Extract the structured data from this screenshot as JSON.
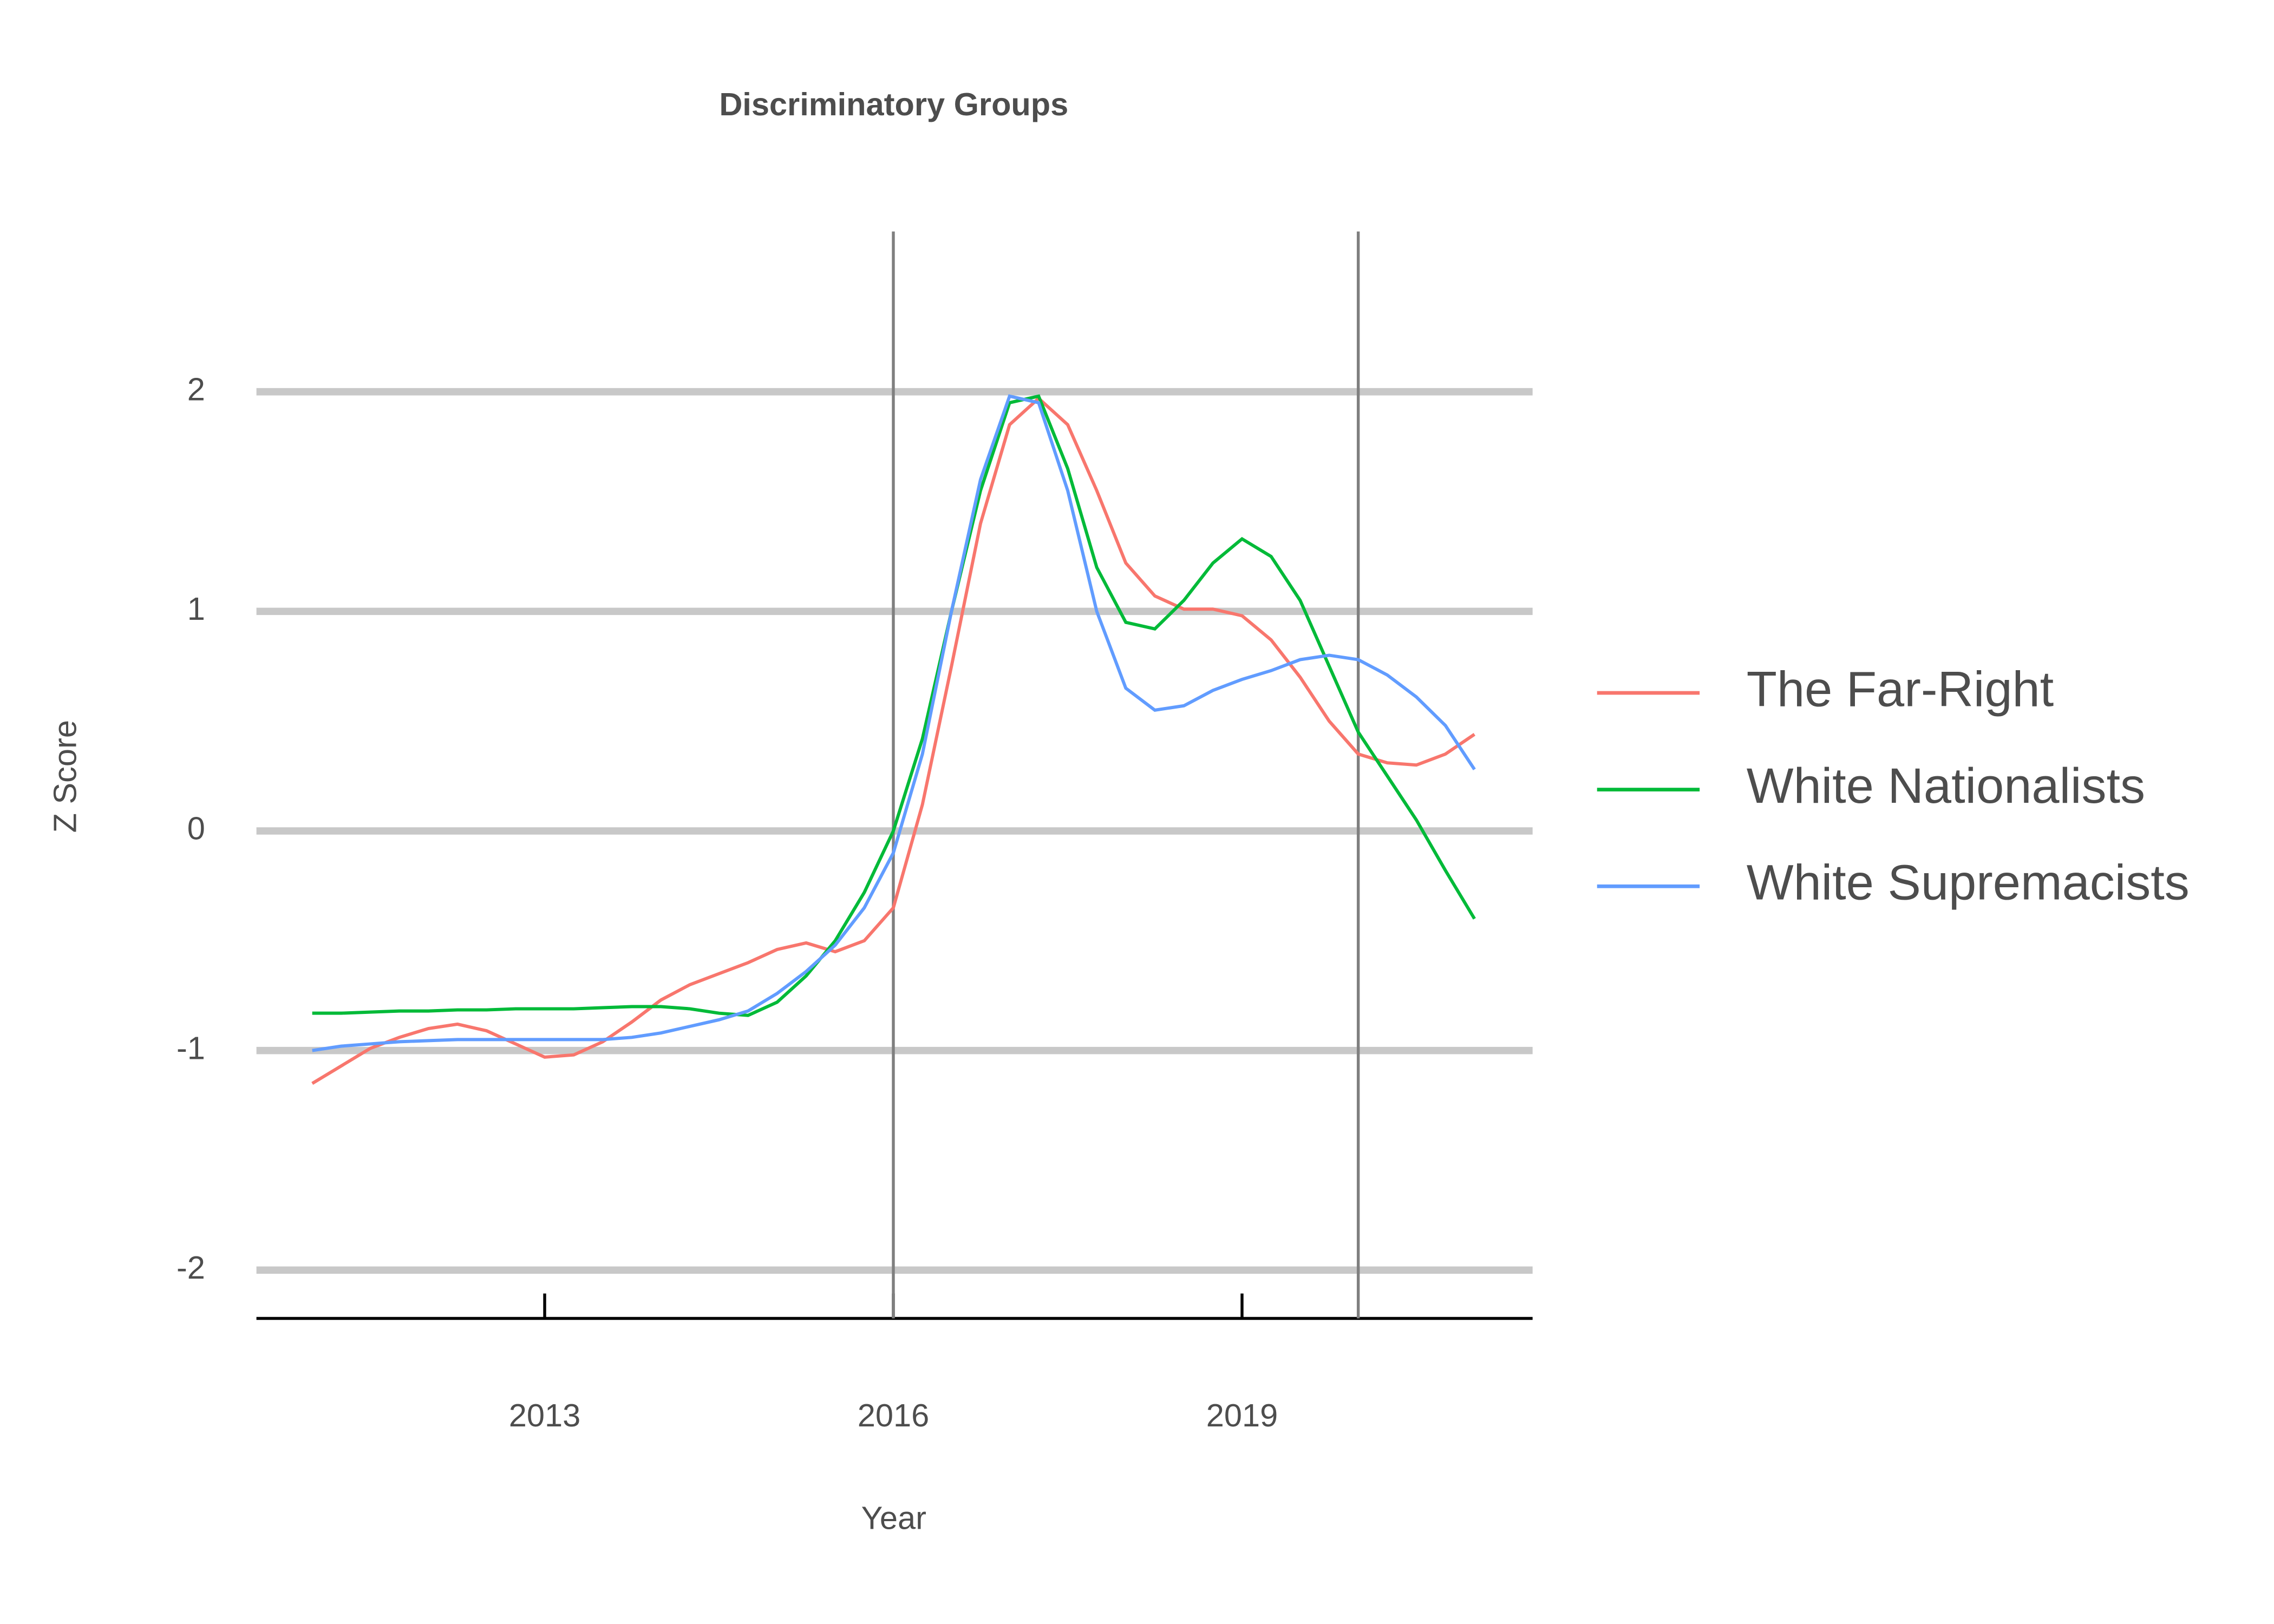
{
  "chart_data": {
    "type": "line",
    "title": "Discriminatory Groups",
    "x_label": "Year",
    "y_label": "Z Score",
    "x": [
      2011,
      2011.25,
      2011.5,
      2011.75,
      2012,
      2012.25,
      2012.5,
      2012.75,
      2013,
      2013.25,
      2013.5,
      2013.75,
      2014,
      2014.25,
      2014.5,
      2014.75,
      2015,
      2015.25,
      2015.5,
      2015.75,
      2016,
      2016.25,
      2016.5,
      2016.75,
      2017,
      2017.25,
      2017.5,
      2017.75,
      2018,
      2018.25,
      2018.5,
      2018.75,
      2019,
      2019.25,
      2019.5,
      2019.75,
      2020,
      2020.25,
      2020.5,
      2020.75,
      2021
    ],
    "series": [
      {
        "name": "The Far-Right",
        "color": "#f8766d",
        "values": [
          -1.15,
          -1.07,
          -0.99,
          -0.94,
          -0.9,
          -0.88,
          -0.91,
          -0.97,
          -1.03,
          -1.02,
          -0.96,
          -0.87,
          -0.77,
          -0.7,
          -0.65,
          -0.6,
          -0.54,
          -0.51,
          -0.55,
          -0.5,
          -0.35,
          0.12,
          0.75,
          1.4,
          1.85,
          1.97,
          1.85,
          1.55,
          1.22,
          1.07,
          1.01,
          1.01,
          0.98,
          0.87,
          0.7,
          0.5,
          0.35,
          0.31,
          0.3,
          0.35,
          0.44
        ]
      },
      {
        "name": "White Nationalists",
        "color": "#00ba38",
        "values": [
          -0.83,
          -0.83,
          -0.825,
          -0.82,
          -0.82,
          -0.815,
          -0.815,
          -0.81,
          -0.81,
          -0.81,
          -0.805,
          -0.8,
          -0.8,
          -0.81,
          -0.83,
          -0.84,
          -0.78,
          -0.66,
          -0.5,
          -0.28,
          0.0,
          0.42,
          1.0,
          1.55,
          1.95,
          1.98,
          1.65,
          1.2,
          0.95,
          0.92,
          1.05,
          1.22,
          1.33,
          1.25,
          1.05,
          0.75,
          0.45,
          0.25,
          0.05,
          -0.18,
          -0.4
        ]
      },
      {
        "name": "White Supremacists",
        "color": "#619cff",
        "values": [
          -1.0,
          -0.98,
          -0.97,
          -0.96,
          -0.955,
          -0.95,
          -0.95,
          -0.95,
          -0.95,
          -0.95,
          -0.95,
          -0.94,
          -0.92,
          -0.89,
          -0.86,
          -0.82,
          -0.74,
          -0.64,
          -0.52,
          -0.35,
          -0.1,
          0.35,
          1.0,
          1.6,
          1.98,
          1.95,
          1.55,
          1.0,
          0.65,
          0.55,
          0.57,
          0.64,
          0.69,
          0.73,
          0.78,
          0.8,
          0.78,
          0.71,
          0.61,
          0.48,
          0.28
        ]
      }
    ],
    "xlim": [
      2010.52,
      2021.5
    ],
    "xticks": [
      2013,
      2016,
      2019
    ],
    "ylim": [
      -2.22,
      2.73
    ],
    "yticks": [
      -2,
      -1,
      0,
      1,
      2
    ],
    "vlines": [
      2016,
      2020
    ],
    "grid": true
  }
}
